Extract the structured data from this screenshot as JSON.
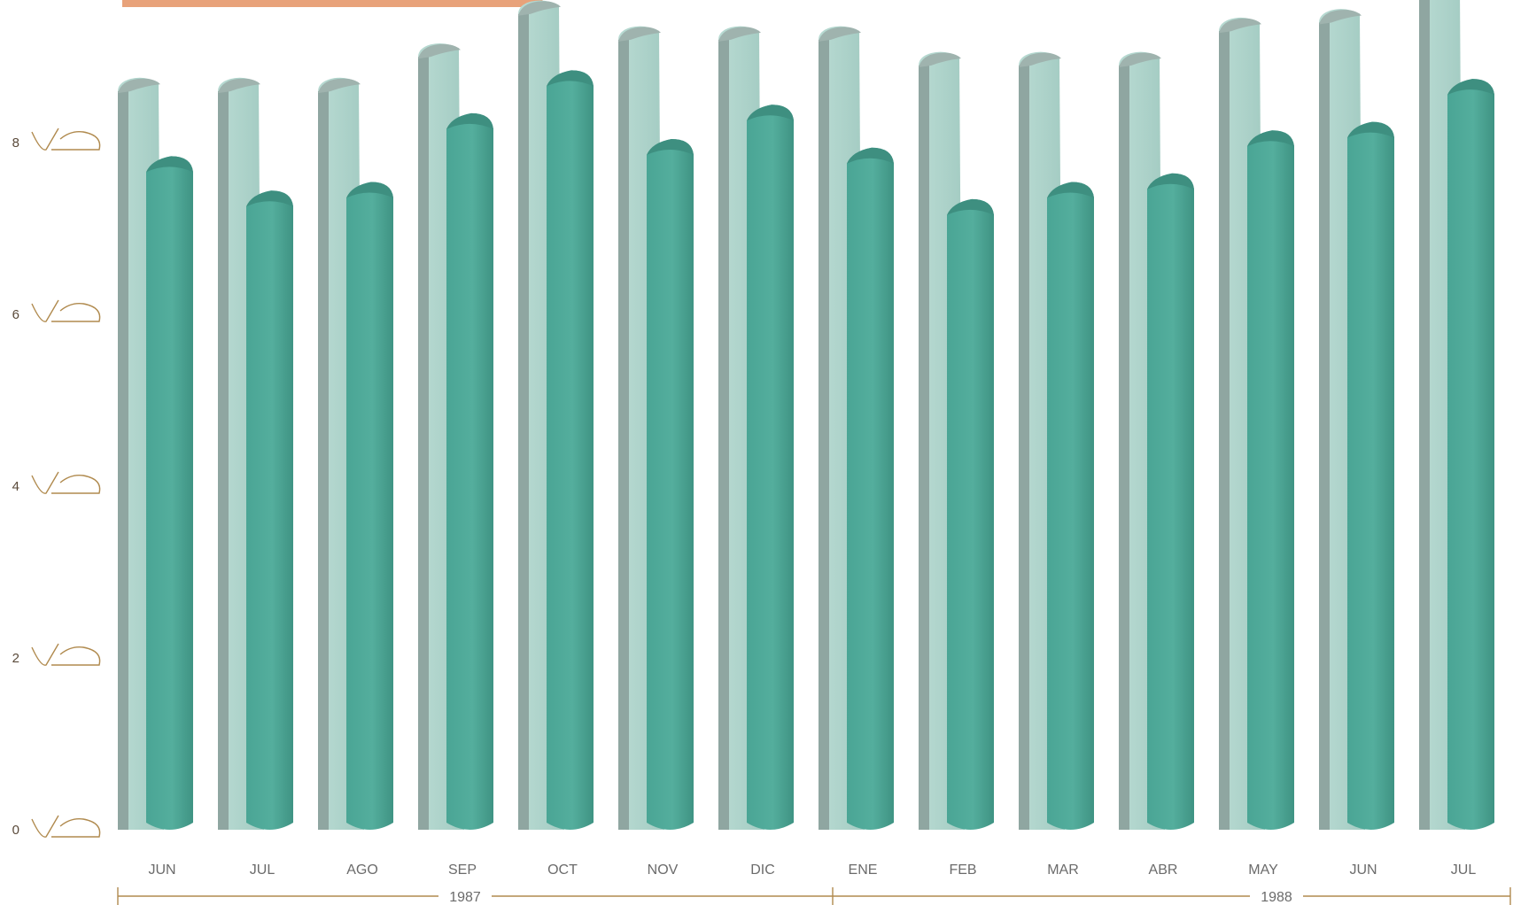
{
  "chart_data": {
    "type": "bar",
    "title": "",
    "xlabel": "",
    "ylabel": "",
    "ylim": [
      0,
      9
    ],
    "yticks": [
      0,
      2,
      4,
      6,
      8
    ],
    "grid": false,
    "legend": "none",
    "categories": [
      "JUN",
      "JUL",
      "AGO",
      "SEP",
      "OCT",
      "NOV",
      "DIC",
      "ENE",
      "FEB",
      "MAR",
      "ABR",
      "MAY",
      "JUN",
      "JUL"
    ],
    "year_groups": [
      {
        "label": "1987",
        "categories": [
          "JUN",
          "JUL",
          "AGO",
          "SEP",
          "OCT",
          "NOV",
          "DIC"
        ]
      },
      {
        "label": "1988",
        "categories": [
          "ENE",
          "FEB",
          "MAR",
          "ABR",
          "MAY",
          "JUN",
          "JUL"
        ]
      }
    ],
    "series": [
      {
        "values": [
          8.7,
          8.7,
          8.7,
          9.1,
          9.6,
          9.3,
          9.3,
          9.3,
          9.0,
          9.0,
          9.0,
          9.4,
          9.5,
          9.8
        ]
      },
      {
        "values": [
          7.8,
          7.4,
          7.5,
          8.3,
          8.8,
          8.0,
          8.4,
          7.9,
          7.3,
          7.5,
          7.6,
          8.1,
          8.2,
          8.7
        ]
      }
    ],
    "colors": {
      "back_bar": "#a9cfc6",
      "back_bar_side": "#8fa6a1",
      "back_bar_top": "#9fb3ae",
      "front_bar": "#4fa998",
      "front_bar_dark": "#3e8f80",
      "axis_line": "#b08a4e",
      "title_ribbon": "#e8a27a"
    }
  }
}
